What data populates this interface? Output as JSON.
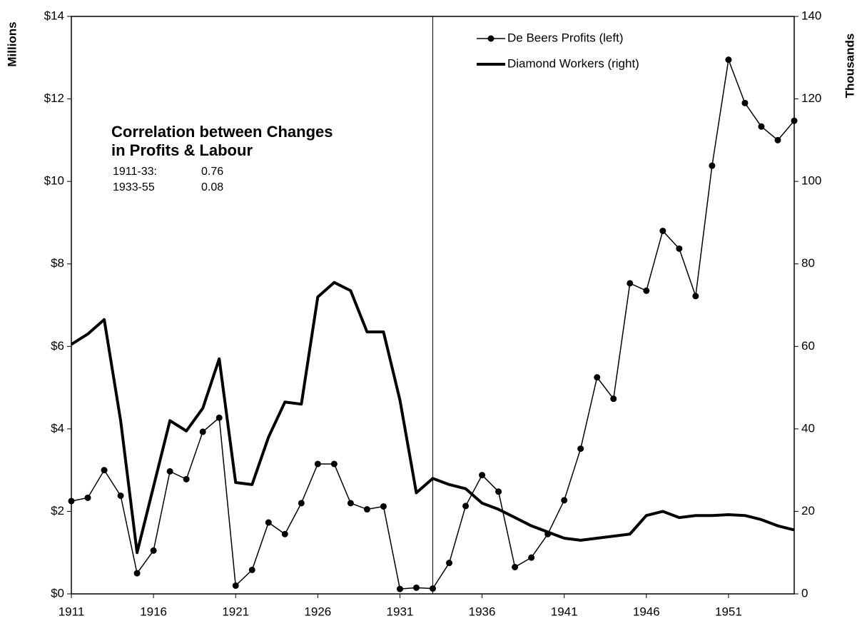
{
  "chart_data": {
    "type": "line",
    "x": [
      1911,
      1912,
      1913,
      1914,
      1915,
      1916,
      1917,
      1918,
      1919,
      1920,
      1921,
      1922,
      1923,
      1924,
      1925,
      1926,
      1927,
      1928,
      1929,
      1930,
      1931,
      1932,
      1933,
      1934,
      1935,
      1936,
      1937,
      1938,
      1939,
      1940,
      1941,
      1942,
      1943,
      1944,
      1945,
      1946,
      1947,
      1948,
      1949,
      1950,
      1951,
      1952,
      1953,
      1954,
      1955
    ],
    "series": [
      {
        "name": "De Beers Profits (left)",
        "color": "#000000",
        "markers": true,
        "axis": "y",
        "values": [
          2.25,
          2.33,
          3.0,
          2.38,
          0.5,
          1.05,
          2.97,
          2.78,
          3.93,
          4.27,
          0.2,
          0.58,
          1.73,
          1.45,
          2.2,
          3.15,
          3.15,
          2.2,
          2.05,
          2.12,
          0.12,
          0.15,
          0.13,
          0.75,
          2.13,
          2.88,
          2.48,
          0.65,
          0.88,
          1.45,
          2.27,
          3.52,
          5.25,
          4.73,
          7.53,
          7.35,
          8.8,
          8.37,
          7.22,
          10.38,
          12.95,
          11.9,
          11.33,
          11.0,
          11.47
        ]
      },
      {
        "name": "Diamond Workers (right)",
        "color": "#000000",
        "markers": false,
        "axis": "y2",
        "values": [
          60.5,
          63,
          66.5,
          42,
          10,
          26,
          42,
          39.5,
          45,
          57,
          27,
          26.5,
          38,
          46.5,
          46,
          72,
          75.5,
          73.5,
          63.5,
          63.5,
          47,
          24.5,
          28,
          26.5,
          25.5,
          22,
          20.5,
          18.5,
          16.5,
          15,
          13.5,
          13,
          13.5,
          14,
          14.5,
          19,
          20,
          18.5,
          19,
          19,
          19.2,
          19,
          18,
          16.5,
          15.5
        ]
      }
    ],
    "xlim": [
      1911,
      1955
    ],
    "xticks": [
      1911,
      1916,
      1921,
      1926,
      1931,
      1936,
      1941,
      1946,
      1951
    ],
    "ylim": [
      0,
      14
    ],
    "yticks": [
      {
        "value": 0,
        "label": "$0"
      },
      {
        "value": 2,
        "label": "$2"
      },
      {
        "value": 4,
        "label": "$4"
      },
      {
        "value": 6,
        "label": "$6"
      },
      {
        "value": 8,
        "label": "$8"
      },
      {
        "value": 10,
        "label": "$10"
      },
      {
        "value": 12,
        "label": "$12"
      },
      {
        "value": 14,
        "label": "$14"
      }
    ],
    "y2lim": [
      0,
      140
    ],
    "y2ticks": [
      0,
      20,
      40,
      60,
      80,
      100,
      120,
      140
    ],
    "ylabel": "Millions",
    "y2label": "Thousands",
    "vline": 1933,
    "legend": "upper right",
    "grid": false,
    "annotation": {
      "title": [
        "Correlation between Changes",
        "in Profits & Labour"
      ],
      "rows": [
        [
          "1911-33:",
          0.76
        ],
        [
          "1933-55",
          0.08
        ]
      ]
    }
  }
}
